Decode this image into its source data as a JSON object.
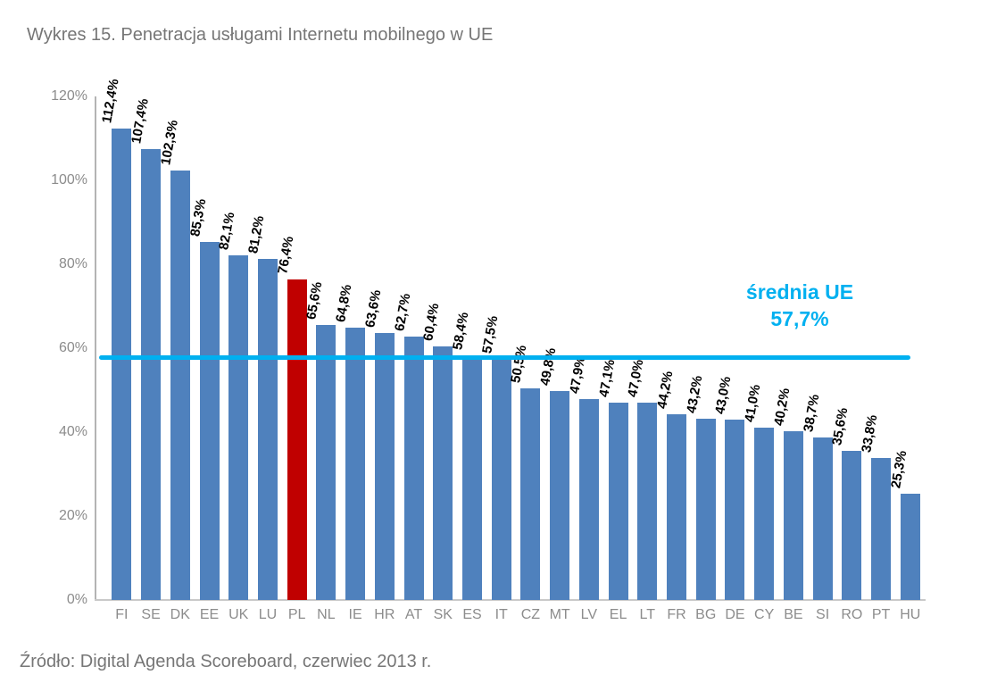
{
  "title": "Wykres 15. Penetracja usługami Internetu mobilnego w UE",
  "source": "Źródło: Digital Agenda Scoreboard, czerwiec 2013 r.",
  "average": {
    "label_line1": "średnia UE",
    "label_line2": "57,7%"
  },
  "chart_data": {
    "type": "bar",
    "title": "Wykres 15. Penetracja usługami Internetu mobilnego w UE",
    "xlabel": "",
    "ylabel": "",
    "ylim": [
      0,
      120
    ],
    "grid": false,
    "legend": false,
    "categories": [
      "FI",
      "SE",
      "DK",
      "EE",
      "UK",
      "LU",
      "PL",
      "NL",
      "IE",
      "HR",
      "AT",
      "SK",
      "ES",
      "IT",
      "CZ",
      "MT",
      "LV",
      "EL",
      "LT",
      "FR",
      "BG",
      "DE",
      "CY",
      "BE",
      "SI",
      "RO",
      "PT",
      "HU"
    ],
    "values": [
      112.4,
      107.4,
      102.3,
      85.3,
      82.1,
      81.2,
      76.4,
      65.6,
      64.8,
      63.6,
      62.7,
      60.4,
      58.4,
      57.5,
      50.5,
      49.8,
      47.9,
      47.1,
      47.0,
      44.2,
      43.2,
      43.0,
      41.0,
      40.2,
      38.7,
      35.6,
      33.8,
      25.3
    ],
    "value_labels": [
      "112,4%",
      "107,4%",
      "102,3%",
      "85,3%",
      "82,1%",
      "81,2%",
      "76,4%",
      "65,6%",
      "64,8%",
      "63,6%",
      "62,7%",
      "60,4%",
      "58,4%",
      "57,5%",
      "50,5%",
      "49,8%",
      "47,9%",
      "47,1%",
      "47,0%",
      "44,2%",
      "43,2%",
      "43,0%",
      "41,0%",
      "40,2%",
      "38,7%",
      "35,6%",
      "33,8%",
      "25,3%"
    ],
    "highlight_category": "PL",
    "average_line": {
      "value": 57.7,
      "label": "średnia UE 57,7%"
    },
    "y_ticks": [
      "0%",
      "20%",
      "40%",
      "60%",
      "80%",
      "100%",
      "120%"
    ],
    "colors": {
      "bar": "#4F81BD",
      "highlight": "#C00000",
      "average_line": "#00B0F0",
      "axis_text": "#8C8C8C",
      "title_text": "#767676"
    }
  }
}
